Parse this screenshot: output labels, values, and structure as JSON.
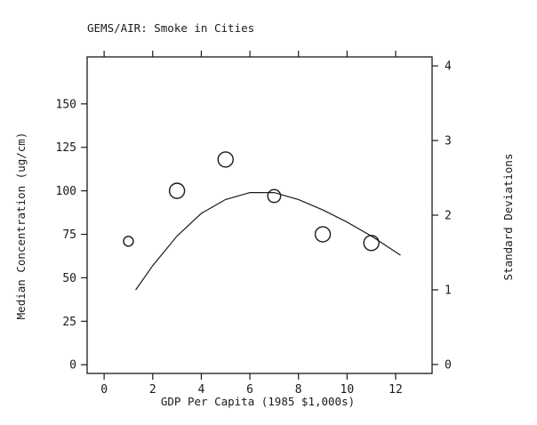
{
  "chart_data": {
    "type": "scatter",
    "title": "GEMS/AIR: Smoke in Cities",
    "xlabel": "GDP Per Capita (1985 $1,000s)",
    "ylabel": "Median Concentration (ug/cm)",
    "y2label": "Standard Deviations",
    "xlim": [
      -0.7,
      13.5
    ],
    "ylim": [
      -5,
      177
    ],
    "y2lim": [
      -0.12,
      4.12
    ],
    "x_ticks": [
      0,
      2,
      4,
      6,
      8,
      10,
      12
    ],
    "y_ticks": [
      0,
      25,
      50,
      75,
      100,
      125,
      150
    ],
    "y2_ticks": [
      0,
      1,
      2,
      3,
      4
    ],
    "grid": false,
    "legend": "none",
    "points": [
      {
        "x": 1,
        "y": 71,
        "weight": 0.4
      },
      {
        "x": 3,
        "y": 100,
        "weight": 1.0
      },
      {
        "x": 5,
        "y": 118,
        "weight": 1.0
      },
      {
        "x": 7,
        "y": 97,
        "weight": 0.75
      },
      {
        "x": 9,
        "y": 75,
        "weight": 1.0
      },
      {
        "x": 11,
        "y": 70,
        "weight": 1.0
      }
    ],
    "fit_line": {
      "x": [
        1.3,
        2,
        3,
        4,
        5,
        6,
        7,
        8,
        9,
        10,
        11,
        12.2
      ],
      "y": [
        43,
        57,
        74,
        87,
        95,
        99,
        99,
        95,
        89,
        82,
        74,
        63
      ]
    }
  }
}
